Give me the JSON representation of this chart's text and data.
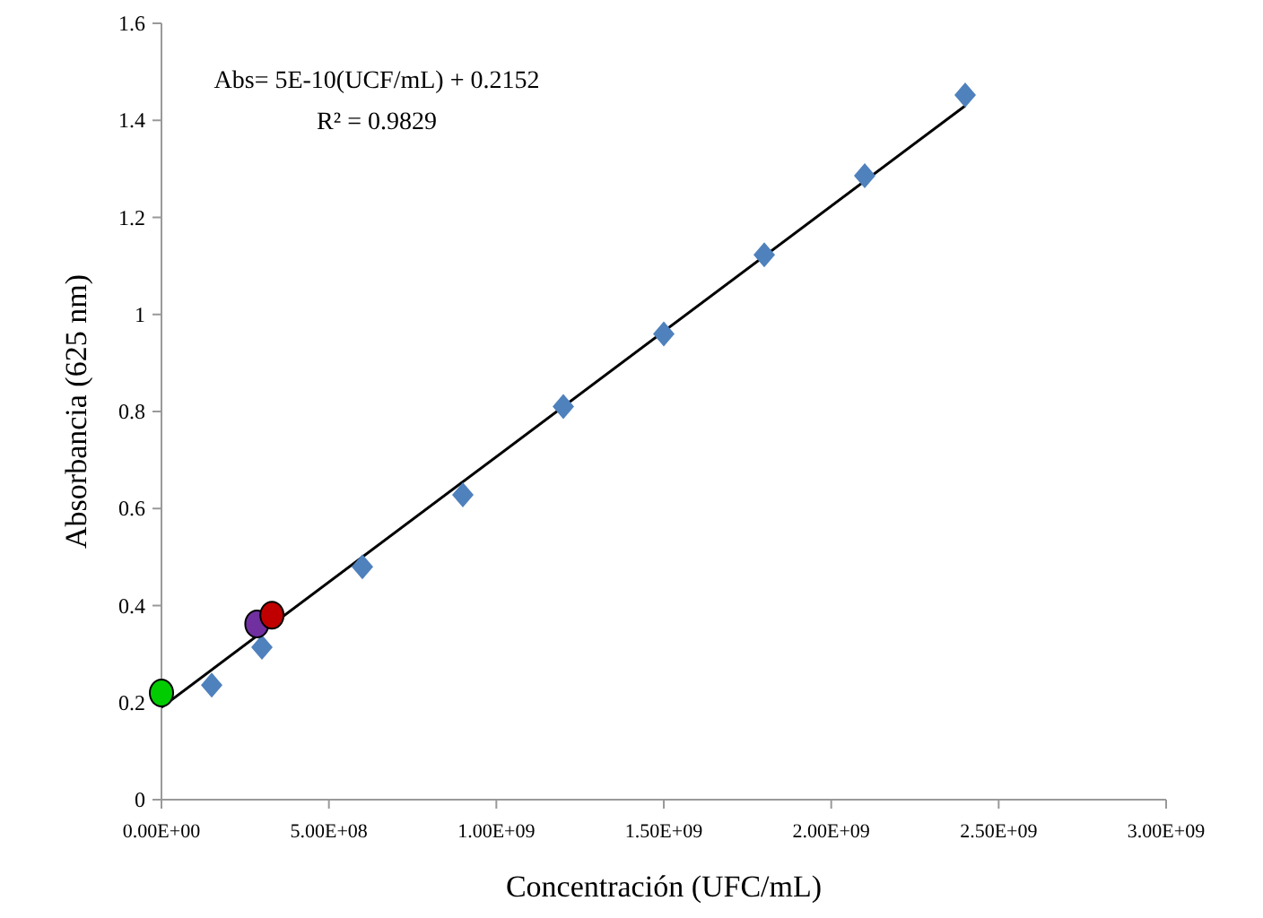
{
  "chart_data": {
    "type": "scatter",
    "xlabel": "Concentración (UFC/mL)",
    "ylabel": "Absorbancia (625 nm)",
    "annotations": [
      "Abs= 5E-10(UCF/mL) + 0.2152",
      "R² = 0.9829"
    ],
    "xlim": [
      0,
      3000000000
    ],
    "ylim": [
      0,
      1.6
    ],
    "xticks": [
      {
        "value": 0,
        "label": "0.00E+00"
      },
      {
        "value": 500000000,
        "label": "5.00E+08"
      },
      {
        "value": 1000000000,
        "label": "1.00E+09"
      },
      {
        "value": 1500000000,
        "label": "1.50E+09"
      },
      {
        "value": 2000000000,
        "label": "2.00E+09"
      },
      {
        "value": 2500000000,
        "label": "2.50E+09"
      },
      {
        "value": 3000000000,
        "label": "3.00E+09"
      }
    ],
    "yticks": [
      0,
      0.2,
      0.4,
      0.6,
      0.8,
      1,
      1.2,
      1.4,
      1.6
    ],
    "grid": false,
    "series": [
      {
        "type": "line",
        "color": "#000000",
        "marker": "none",
        "x": [
          0,
          2400000000
        ],
        "values": [
          0.19,
          1.43
        ]
      },
      {
        "color": "#4f81bd",
        "marker": "diamond",
        "x": [
          150000000,
          300000000,
          600000000,
          900000000,
          1200000000,
          1500000000,
          1800000000,
          2100000000,
          2400000000
        ],
        "values": [
          0.236,
          0.314,
          0.48,
          0.628,
          0.81,
          0.96,
          1.123,
          1.286,
          1.452
        ]
      },
      {
        "color": "#00cc00",
        "marker": "circle",
        "x": [
          0
        ],
        "values": [
          0.22
        ]
      },
      {
        "color": "#7030a0",
        "marker": "circle",
        "x": [
          285000000
        ],
        "values": [
          0.362
        ]
      },
      {
        "color": "#c00000",
        "marker": "circle",
        "x": [
          330000000
        ],
        "values": [
          0.38
        ]
      }
    ]
  }
}
